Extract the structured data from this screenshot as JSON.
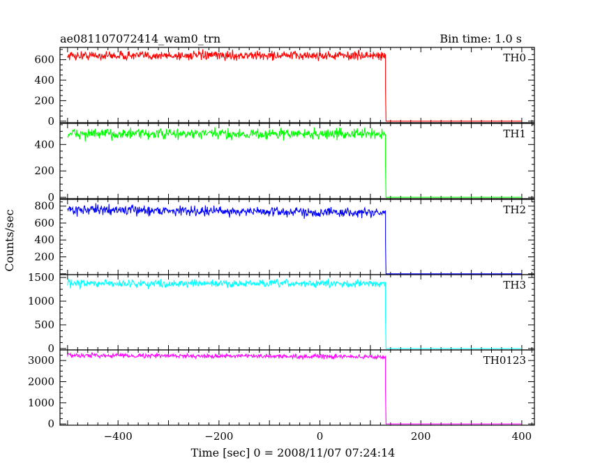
{
  "chart_data": {
    "type": "line",
    "title_left": "ae081107072414_wam0_trn",
    "title_right": "Bin time: 1.0 s",
    "xlabel": "Time [sec] 0 = 2008/11/07 07:24:14",
    "ylabel": "Counts/sec",
    "xlim": [
      -515,
      425
    ],
    "x_ticks": [
      -400,
      -200,
      0,
      200,
      400
    ],
    "x_tick_labels": [
      "−400",
      "−200",
      "0",
      "200",
      "400"
    ],
    "step_time": 130,
    "x_start": -500,
    "x_end": 400,
    "panels": [
      {
        "name": "TH0",
        "color": "#ff0000",
        "ylim": [
          -15,
          720
        ],
        "mean": 640,
        "noise": 22,
        "trend": 0,
        "ticks": [
          0,
          200,
          400,
          600
        ],
        "tick_labels": [
          "0",
          "200",
          "400",
          "600"
        ]
      },
      {
        "name": "TH1",
        "color": "#00ff00",
        "ylim": [
          -10,
          560
        ],
        "mean": 480,
        "noise": 20,
        "trend": 0,
        "ticks": [
          0,
          200,
          400
        ],
        "tick_labels": [
          "0",
          "200",
          "400"
        ]
      },
      {
        "name": "TH2",
        "color": "#0000ff",
        "ylim": [
          -10,
          880
        ],
        "mean": 760,
        "noise": 28,
        "trend": -40,
        "ticks": [
          200,
          400,
          600,
          800
        ],
        "tick_labels": [
          "200",
          "400",
          "600",
          "800"
        ]
      },
      {
        "name": "TH3",
        "color": "#00ffff",
        "ylim": [
          -30,
          1560
        ],
        "mean": 1370,
        "noise": 40,
        "trend": 0,
        "ticks": [
          0,
          500,
          1000,
          1500
        ],
        "tick_labels": [
          "0",
          "500",
          "1000",
          "1500"
        ]
      },
      {
        "name": "TH0123",
        "color": "#ff00ff",
        "ylim": [
          -60,
          3500
        ],
        "mean": 3250,
        "noise": 50,
        "trend": -80,
        "ticks": [
          0,
          1000,
          2000,
          3000
        ],
        "tick_labels": [
          "0",
          "1000",
          "2000",
          "3000"
        ]
      }
    ]
  }
}
